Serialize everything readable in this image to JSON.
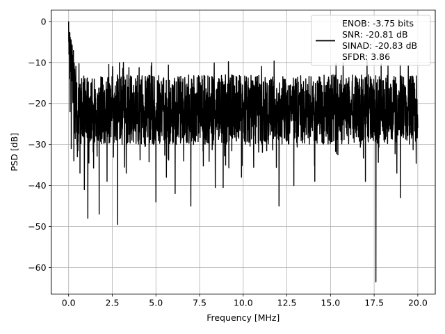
{
  "chart_data": {
    "type": "line",
    "xlabel": "Frequency [MHz]",
    "ylabel": "PSD [dB]",
    "xlim": [
      -1.0,
      21.0
    ],
    "ylim": [
      -66.5,
      2.8
    ],
    "xticks": [
      0.0,
      2.5,
      5.0,
      7.5,
      10.0,
      12.5,
      15.0,
      17.5,
      20.0
    ],
    "xtick_labels": [
      "0.0",
      "2.5",
      "5.0",
      "7.5",
      "10.0",
      "12.5",
      "15.0",
      "17.5",
      "20.0"
    ],
    "yticks": [
      0,
      -10,
      -20,
      -30,
      -40,
      -50,
      -60
    ],
    "ytick_labels": [
      "0",
      "−10",
      "−20",
      "−30",
      "−40",
      "−50",
      "−60"
    ],
    "grid": true,
    "legend_position": "top-right",
    "series": [
      {
        "name": "ENOB: -3.75 bits\nSNR: -20.81 dB\nSINAD: -20.83 dB\nSFDR: 3.86",
        "legend_lines": [
          "ENOB: -3.75 bits",
          "SNR: -20.81 dB",
          "SINAD: -20.83 dB",
          "SFDR: 3.86"
        ],
        "color": "#000000",
        "x_range": [
          0.0,
          20.0
        ],
        "baseline_db": -21,
        "noise_spread_db": [
          -13,
          -30
        ],
        "sampled_points": [
          [
            0.0,
            0.0
          ],
          [
            0.02,
            -8
          ],
          [
            0.05,
            -14
          ],
          [
            0.08,
            -22
          ],
          [
            0.15,
            -31
          ],
          [
            0.3,
            -34
          ],
          [
            0.5,
            -33
          ],
          [
            0.65,
            -37
          ],
          [
            0.9,
            -41
          ],
          [
            1.1,
            -48
          ],
          [
            1.75,
            -47
          ],
          [
            2.2,
            -39
          ],
          [
            2.8,
            -49.5
          ],
          [
            3.3,
            -37
          ],
          [
            5.0,
            -44
          ],
          [
            5.6,
            -38
          ],
          [
            6.1,
            -42
          ],
          [
            7.0,
            -45
          ],
          [
            8.4,
            -40.5
          ],
          [
            8.85,
            -40.5
          ],
          [
            9.9,
            -38
          ],
          [
            12.05,
            -45
          ],
          [
            12.9,
            -40
          ],
          [
            14.1,
            -39
          ],
          [
            17.0,
            -39
          ],
          [
            17.6,
            -63.5
          ],
          [
            18.8,
            -37
          ],
          [
            19.0,
            -43
          ],
          [
            20.0,
            -26
          ]
        ]
      }
    ]
  }
}
